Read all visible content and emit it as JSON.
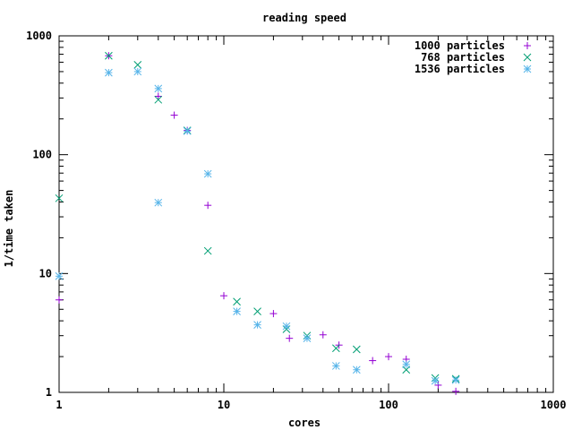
{
  "chart_data": {
    "type": "scatter",
    "title": "reading speed",
    "xlabel": "cores",
    "ylabel": "1/time taken",
    "xscale": "log",
    "yscale": "log",
    "xlim": [
      1,
      1000
    ],
    "ylim": [
      1,
      1000
    ],
    "x_ticks": [
      {
        "value": 1,
        "label": "1"
      },
      {
        "value": 10,
        "label": "10"
      },
      {
        "value": 100,
        "label": "100"
      },
      {
        "value": 1000,
        "label": "1000"
      }
    ],
    "y_ticks": [
      {
        "value": 1,
        "label": "1"
      },
      {
        "value": 10,
        "label": "10"
      },
      {
        "value": 100,
        "label": "100"
      },
      {
        "value": 1000,
        "label": "1000"
      }
    ],
    "grid": false,
    "legend_position": "top-right",
    "series": [
      {
        "name": "1000 particles",
        "marker": "plus",
        "color": "#9400d3",
        "points": [
          [
            1,
            6
          ],
          [
            2,
            680
          ],
          [
            4,
            310
          ],
          [
            5,
            215
          ],
          [
            6,
            160
          ],
          [
            8,
            37.5
          ],
          [
            10,
            6.5
          ],
          [
            20,
            4.6
          ],
          [
            25,
            2.85
          ],
          [
            40,
            3.05
          ],
          [
            50,
            2.5
          ],
          [
            80,
            1.85
          ],
          [
            100,
            2
          ],
          [
            128,
            1.9
          ],
          [
            200,
            1.15
          ],
          [
            256,
            1.02
          ]
        ]
      },
      {
        "name": "768 particles",
        "marker": "cross",
        "color": "#009e73",
        "points": [
          [
            1,
            43
          ],
          [
            2,
            680
          ],
          [
            3,
            570
          ],
          [
            4,
            290
          ],
          [
            6,
            160
          ],
          [
            8,
            15.5
          ],
          [
            12,
            5.8
          ],
          [
            16,
            4.8
          ],
          [
            24,
            3.4
          ],
          [
            32,
            3.0
          ],
          [
            48,
            2.35
          ],
          [
            64,
            2.3
          ],
          [
            128,
            1.55
          ],
          [
            192,
            1.32
          ],
          [
            256,
            1.3
          ]
        ]
      },
      {
        "name": "1536 particles",
        "marker": "star",
        "color": "#56b4e9",
        "points": [
          [
            1,
            9.5
          ],
          [
            2,
            490
          ],
          [
            3,
            500
          ],
          [
            4,
            360
          ],
          [
            4,
            39.5
          ],
          [
            6,
            158
          ],
          [
            8,
            69
          ],
          [
            12,
            4.8
          ],
          [
            16,
            3.7
          ],
          [
            24,
            3.6
          ],
          [
            32,
            2.85
          ],
          [
            48,
            1.67
          ],
          [
            64,
            1.55
          ],
          [
            128,
            1.72
          ],
          [
            192,
            1.25
          ],
          [
            256,
            1.27
          ]
        ]
      }
    ]
  }
}
